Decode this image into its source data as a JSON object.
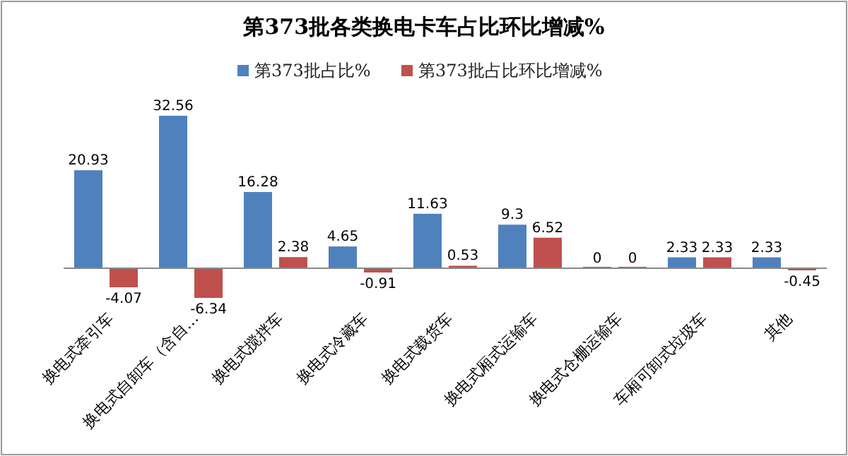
{
  "chart_data": {
    "type": "bar",
    "title": "第373批各类换电卡车占比环比增减%",
    "categories": [
      "换电式牵引车",
      "换电式自卸车（含自…",
      "换电式搅拌车",
      "换电式冷藏车",
      "换电式载货车",
      "换电式厢式运输车",
      "换电式仓栅运输车",
      "车厢可卸式垃圾车",
      "其他"
    ],
    "series": [
      {
        "name": "第373批占比%",
        "color": "#4f81bd",
        "values": [
          20.93,
          32.56,
          16.28,
          4.65,
          11.63,
          9.3,
          0,
          2.33,
          2.33
        ]
      },
      {
        "name": "第373批占比环比增减%",
        "color": "#c0504d",
        "values": [
          -4.07,
          -6.34,
          2.38,
          -0.91,
          0.53,
          6.52,
          0,
          2.33,
          -0.45
        ]
      }
    ],
    "data_labels": true,
    "legend": "top"
  }
}
